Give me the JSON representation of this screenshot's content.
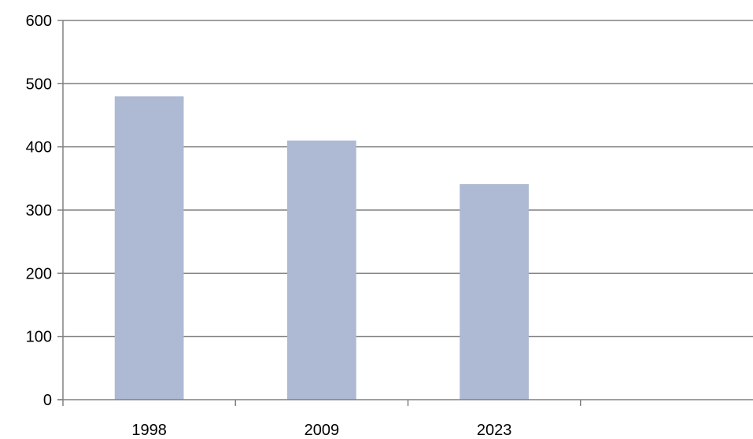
{
  "chart_data": {
    "type": "bar",
    "title": "",
    "xlabel": "",
    "ylabel": "",
    "categories": [
      "1998",
      "2009",
      "2023",
      ""
    ],
    "values": [
      480,
      410,
      341,
      null
    ],
    "ylim": [
      0,
      600
    ],
    "yticks": [
      0,
      100,
      200,
      300,
      400,
      500,
      600
    ],
    "grid": true,
    "legend": "none",
    "colors": {
      "bar": "#aeb9d4",
      "grid": "#808080",
      "axis": "#808080",
      "text": "#000000",
      "background": "#ffffff"
    }
  }
}
